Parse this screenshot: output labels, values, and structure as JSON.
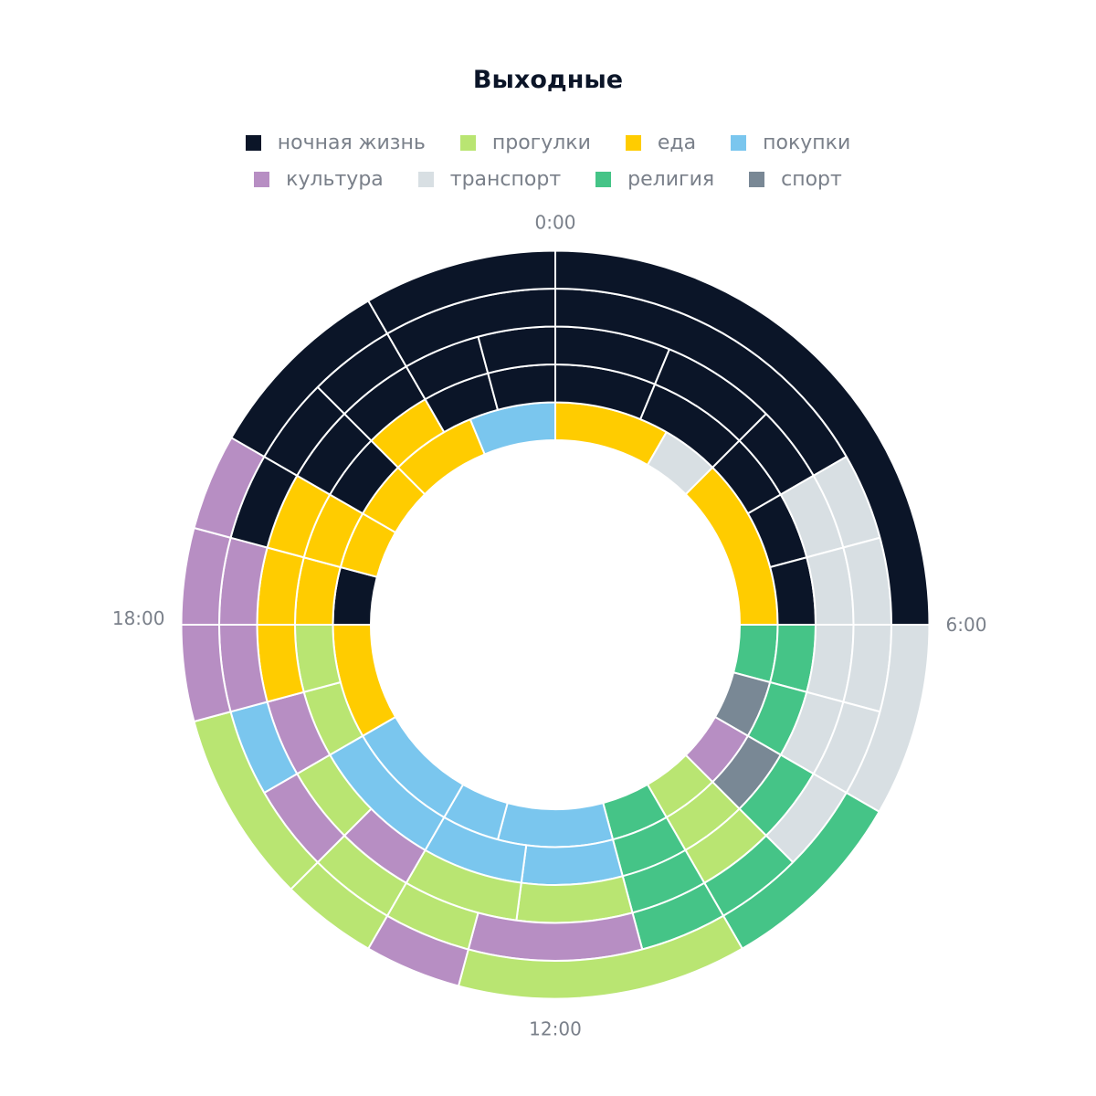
{
  "title": "Выходные",
  "legend": [
    {
      "key": "night",
      "label": "ночная жизнь",
      "color": "#0b1528"
    },
    {
      "key": "walk",
      "label": "прогулки",
      "color": "#b9e572"
    },
    {
      "key": "food",
      "label": "еда",
      "color": "#ffcc00"
    },
    {
      "key": "shop",
      "label": "покупки",
      "color": "#7ac6ee"
    },
    {
      "key": "culture",
      "label": "культура",
      "color": "#b78ec3"
    },
    {
      "key": "transport",
      "label": "транспорт",
      "color": "#d8dfe3"
    },
    {
      "key": "religion",
      "label": "религия",
      "color": "#45c487"
    },
    {
      "key": "sport",
      "label": "спорт",
      "color": "#798895"
    }
  ],
  "time_labels": [
    {
      "label": "0:00",
      "hour": 0
    },
    {
      "label": "6:00",
      "hour": 6
    },
    {
      "label": "12:00",
      "hour": 12
    },
    {
      "label": "18:00",
      "hour": 18
    }
  ],
  "chart_data": {
    "type": "radial-stacked-rings",
    "title": "Выходные",
    "hours_per_turn": 24,
    "ring_order": "inner-to-outer",
    "rings": [
      {
        "rank": 1,
        "segments": [
          {
            "start": 0,
            "end": 2,
            "category": "food"
          },
          {
            "start": 2,
            "end": 3,
            "category": "transport"
          },
          {
            "start": 3,
            "end": 6,
            "category": "food"
          },
          {
            "start": 6,
            "end": 7,
            "category": "religion"
          },
          {
            "start": 7,
            "end": 8,
            "category": "sport"
          },
          {
            "start": 8,
            "end": 9,
            "category": "culture"
          },
          {
            "start": 9,
            "end": 10,
            "category": "walk"
          },
          {
            "start": 10,
            "end": 11,
            "category": "religion"
          },
          {
            "start": 11,
            "end": 13,
            "category": "shop"
          },
          {
            "start": 13,
            "end": 14,
            "category": "shop"
          },
          {
            "start": 14,
            "end": 16,
            "category": "shop"
          },
          {
            "start": 16,
            "end": 18,
            "category": "food"
          },
          {
            "start": 18,
            "end": 19,
            "category": "night"
          },
          {
            "start": 19,
            "end": 20,
            "category": "food"
          },
          {
            "start": 20,
            "end": 21,
            "category": "food"
          },
          {
            "start": 21,
            "end": 22.5,
            "category": "food"
          },
          {
            "start": 22.5,
            "end": 24,
            "category": "shop"
          }
        ]
      },
      {
        "rank": 2,
        "segments": [
          {
            "start": 0,
            "end": 1.5,
            "category": "night"
          },
          {
            "start": 1.5,
            "end": 3,
            "category": "night"
          },
          {
            "start": 3,
            "end": 4,
            "category": "night"
          },
          {
            "start": 4,
            "end": 5,
            "category": "night"
          },
          {
            "start": 5,
            "end": 6,
            "category": "night"
          },
          {
            "start": 6,
            "end": 7,
            "category": "religion"
          },
          {
            "start": 7,
            "end": 8,
            "category": "religion"
          },
          {
            "start": 8,
            "end": 9,
            "category": "sport"
          },
          {
            "start": 9,
            "end": 10,
            "category": "walk"
          },
          {
            "start": 10,
            "end": 11,
            "category": "religion"
          },
          {
            "start": 11,
            "end": 12.5,
            "category": "shop"
          },
          {
            "start": 12.5,
            "end": 14,
            "category": "shop"
          },
          {
            "start": 14,
            "end": 16,
            "category": "shop"
          },
          {
            "start": 16,
            "end": 17,
            "category": "walk"
          },
          {
            "start": 17,
            "end": 18,
            "category": "walk"
          },
          {
            "start": 18,
            "end": 19,
            "category": "food"
          },
          {
            "start": 19,
            "end": 20,
            "category": "food"
          },
          {
            "start": 20,
            "end": 21,
            "category": "night"
          },
          {
            "start": 21,
            "end": 22,
            "category": "food"
          },
          {
            "start": 22,
            "end": 23,
            "category": "night"
          },
          {
            "start": 23,
            "end": 24,
            "category": "night"
          }
        ]
      },
      {
        "rank": 3,
        "segments": [
          {
            "start": 0,
            "end": 1.5,
            "category": "night"
          },
          {
            "start": 1.5,
            "end": 3,
            "category": "night"
          },
          {
            "start": 3,
            "end": 4,
            "category": "night"
          },
          {
            "start": 4,
            "end": 5,
            "category": "transport"
          },
          {
            "start": 5,
            "end": 6,
            "category": "transport"
          },
          {
            "start": 6,
            "end": 7,
            "category": "transport"
          },
          {
            "start": 7,
            "end": 8,
            "category": "transport"
          },
          {
            "start": 8,
            "end": 9,
            "category": "religion"
          },
          {
            "start": 9,
            "end": 10,
            "category": "walk"
          },
          {
            "start": 10,
            "end": 11,
            "category": "religion"
          },
          {
            "start": 11,
            "end": 12.5,
            "category": "walk"
          },
          {
            "start": 12.5,
            "end": 14,
            "category": "walk"
          },
          {
            "start": 14,
            "end": 15,
            "category": "culture"
          },
          {
            "start": 15,
            "end": 16,
            "category": "walk"
          },
          {
            "start": 16,
            "end": 17,
            "category": "culture"
          },
          {
            "start": 17,
            "end": 18,
            "category": "food"
          },
          {
            "start": 18,
            "end": 19,
            "category": "food"
          },
          {
            "start": 19,
            "end": 20,
            "category": "food"
          },
          {
            "start": 20,
            "end": 21,
            "category": "night"
          },
          {
            "start": 21,
            "end": 22,
            "category": "night"
          },
          {
            "start": 22,
            "end": 23,
            "category": "night"
          },
          {
            "start": 23,
            "end": 24,
            "category": "night"
          }
        ]
      },
      {
        "rank": 4,
        "segments": [
          {
            "start": 0,
            "end": 4,
            "category": "night"
          },
          {
            "start": 4,
            "end": 5,
            "category": "transport"
          },
          {
            "start": 5,
            "end": 6,
            "category": "transport"
          },
          {
            "start": 6,
            "end": 7,
            "category": "transport"
          },
          {
            "start": 7,
            "end": 8,
            "category": "transport"
          },
          {
            "start": 8,
            "end": 9,
            "category": "transport"
          },
          {
            "start": 9,
            "end": 10,
            "category": "religion"
          },
          {
            "start": 10,
            "end": 11,
            "category": "religion"
          },
          {
            "start": 11,
            "end": 13,
            "category": "culture"
          },
          {
            "start": 13,
            "end": 14,
            "category": "walk"
          },
          {
            "start": 14,
            "end": 15,
            "category": "walk"
          },
          {
            "start": 15,
            "end": 16,
            "category": "culture"
          },
          {
            "start": 16,
            "end": 17,
            "category": "shop"
          },
          {
            "start": 17,
            "end": 18,
            "category": "culture"
          },
          {
            "start": 18,
            "end": 19,
            "category": "culture"
          },
          {
            "start": 19,
            "end": 20,
            "category": "night"
          },
          {
            "start": 20,
            "end": 21,
            "category": "night"
          },
          {
            "start": 21,
            "end": 22,
            "category": "night"
          },
          {
            "start": 22,
            "end": 24,
            "category": "night"
          }
        ]
      },
      {
        "rank": 5,
        "segments": [
          {
            "start": 0,
            "end": 6,
            "category": "night"
          },
          {
            "start": 6,
            "end": 8,
            "category": "transport"
          },
          {
            "start": 8,
            "end": 10,
            "category": "religion"
          },
          {
            "start": 10,
            "end": 13,
            "category": "walk"
          },
          {
            "start": 13,
            "end": 14,
            "category": "culture"
          },
          {
            "start": 14,
            "end": 15,
            "category": "walk"
          },
          {
            "start": 15,
            "end": 17,
            "category": "walk"
          },
          {
            "start": 17,
            "end": 18,
            "category": "culture"
          },
          {
            "start": 18,
            "end": 19,
            "category": "culture"
          },
          {
            "start": 19,
            "end": 20,
            "category": "culture"
          },
          {
            "start": 20,
            "end": 22,
            "category": "night"
          },
          {
            "start": 22,
            "end": 24,
            "category": "night"
          }
        ]
      }
    ]
  }
}
